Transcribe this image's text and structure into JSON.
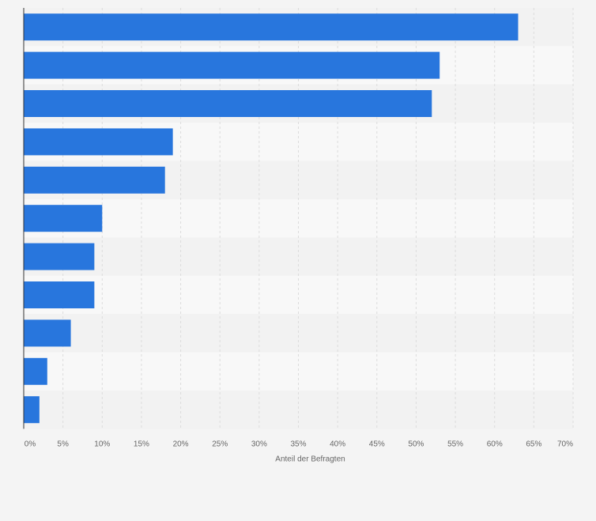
{
  "chart_data": {
    "type": "bar",
    "orientation": "horizontal",
    "title": "",
    "xlabel": "Anteil der Befragten",
    "ylabel": "",
    "categories": [
      "",
      "",
      "",
      "",
      "",
      "",
      "",
      "",
      "",
      "",
      ""
    ],
    "values": [
      63,
      53,
      52,
      19,
      18,
      10,
      9,
      9,
      6,
      3,
      2
    ],
    "xlim": [
      0,
      70
    ],
    "x_ticks": [
      0,
      5,
      10,
      15,
      20,
      25,
      30,
      35,
      40,
      45,
      50,
      55,
      60,
      65,
      70
    ],
    "x_tick_labels": [
      "0%",
      "5%",
      "10%",
      "15%",
      "20%",
      "25%",
      "30%",
      "35%",
      "40%",
      "45%",
      "50%",
      "55%",
      "60%",
      "65%",
      "70%"
    ],
    "grid": true,
    "legend": "none",
    "colors": {
      "bar": "#2876dd",
      "band_odd": "#f2f2f2",
      "band_even": "#f8f8f8",
      "background": "#f4f4f4",
      "grid": "#dcdcdc",
      "axis": "#333333",
      "text": "#666666"
    }
  }
}
